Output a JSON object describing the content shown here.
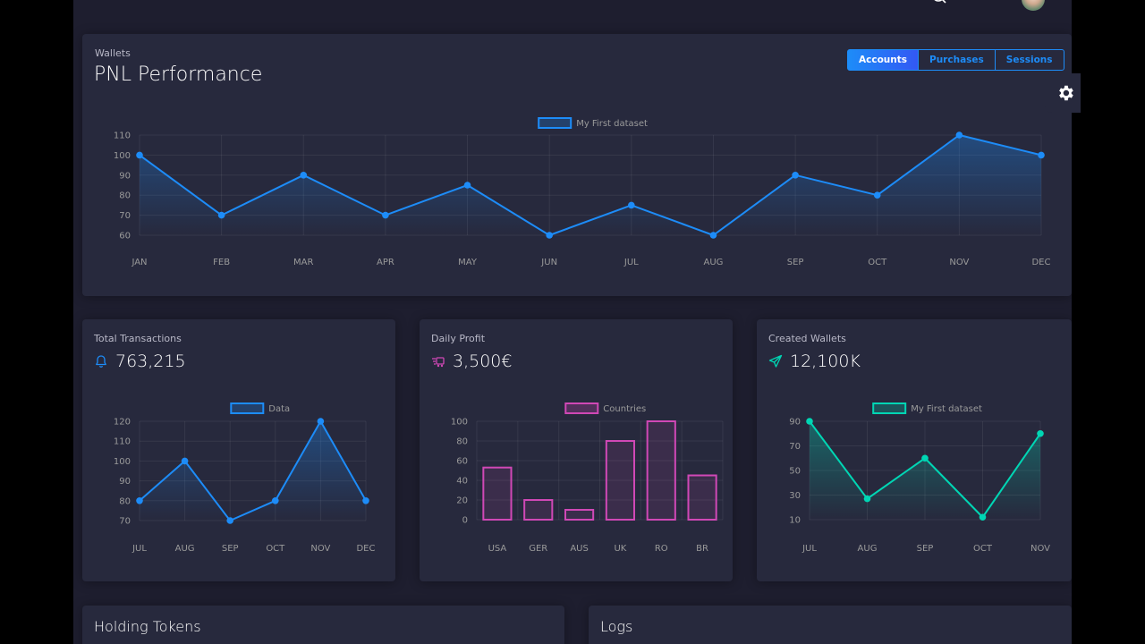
{
  "main_card": {
    "subtitle": "Wallets",
    "title": "PNL Performance",
    "tabs": [
      {
        "label": "Accounts",
        "active": true
      },
      {
        "label": "Purchases",
        "active": false
      },
      {
        "label": "Sessions",
        "active": false
      }
    ]
  },
  "cards": [
    {
      "subtitle": "Total Transactions",
      "value": "763,215",
      "icon": "bell-icon"
    },
    {
      "subtitle": "Daily Profit",
      "value": "3,500€",
      "icon": "delivery-fast-icon"
    },
    {
      "subtitle": "Created Wallets",
      "value": "12,100K",
      "icon": "send-icon"
    }
  ],
  "bottom_cards": [
    {
      "title": "Holding Tokens"
    },
    {
      "title": "Logs"
    }
  ],
  "colors": {
    "blue": "#1d8cf8",
    "pink": "#d048b6",
    "green": "#00d6b4",
    "card": "#27293d",
    "bg": "#1e1e2f"
  },
  "chart_data": [
    {
      "type": "line",
      "legend": "My First dataset",
      "categories": [
        "JAN",
        "FEB",
        "MAR",
        "APR",
        "MAY",
        "JUN",
        "JUL",
        "AUG",
        "SEP",
        "OCT",
        "NOV",
        "DEC"
      ],
      "values": [
        100,
        70,
        90,
        70,
        85,
        60,
        75,
        60,
        90,
        80,
        110,
        100
      ],
      "yticks": [
        60,
        70,
        80,
        90,
        100,
        110
      ],
      "ylim": [
        60,
        110
      ],
      "color": "#1d8cf8"
    },
    {
      "type": "line",
      "legend": "Data",
      "categories": [
        "JUL",
        "AUG",
        "SEP",
        "OCT",
        "NOV",
        "DEC"
      ],
      "values": [
        80,
        100,
        70,
        80,
        120,
        80
      ],
      "yticks": [
        70,
        80,
        90,
        100,
        110,
        120
      ],
      "ylim": [
        70,
        120
      ],
      "color": "#1d8cf8"
    },
    {
      "type": "bar",
      "legend": "Countries",
      "categories": [
        "USA",
        "GER",
        "AUS",
        "UK",
        "RO",
        "BR"
      ],
      "values": [
        53,
        20,
        10,
        80,
        100,
        45
      ],
      "yticks": [
        0,
        20,
        40,
        60,
        80,
        100
      ],
      "ylim": [
        0,
        100
      ],
      "color": "#d048b6"
    },
    {
      "type": "line",
      "legend": "My First dataset",
      "categories": [
        "JUL",
        "AUG",
        "SEP",
        "OCT",
        "NOV"
      ],
      "values": [
        90,
        27,
        60,
        12,
        80
      ],
      "yticks": [
        10,
        30,
        50,
        70,
        90
      ],
      "ylim": [
        10,
        90
      ],
      "color": "#00d6b4"
    }
  ]
}
